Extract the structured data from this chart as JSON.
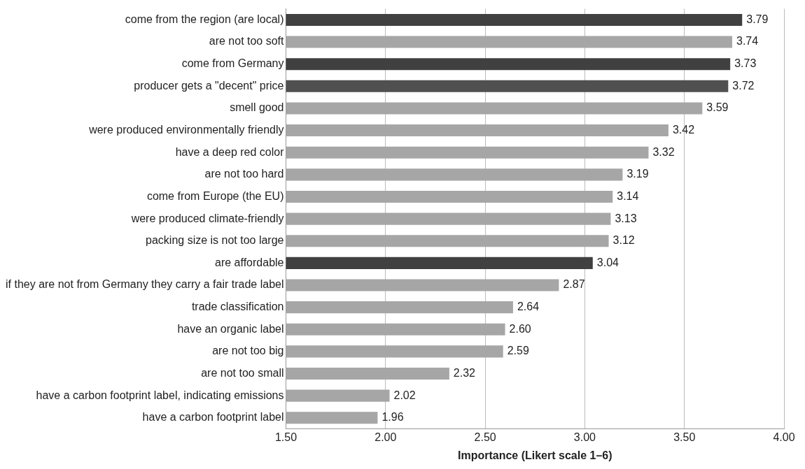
{
  "chart_data": {
    "type": "bar",
    "orientation": "horizontal",
    "xlabel": "Importance (Likert scale 1–6)",
    "categories": [
      "come from the region (are local)",
      "are not too soft",
      "come from Germany",
      "producer gets a \"decent\" price",
      "smell good",
      "were produced environmentally friendly",
      "have a deep red color",
      "are not too hard",
      "come from Europe (the EU)",
      "were produced climate-friendly",
      "packing size is not too large",
      "are affordable",
      "if they are not from Germany they carry a fair trade label",
      "trade classification",
      "have an organic label",
      "are not too big",
      "are not too small",
      "have a carbon footprint label, indicating emissions",
      "have a carbon footprint label"
    ],
    "values": [
      3.79,
      3.74,
      3.73,
      3.72,
      3.59,
      3.42,
      3.32,
      3.19,
      3.14,
      3.13,
      3.12,
      3.04,
      2.87,
      2.64,
      2.6,
      2.59,
      2.32,
      2.02,
      1.96
    ],
    "value_labels": [
      "3.79",
      "3.74",
      "3.73",
      "3.72",
      "3.59",
      "3.42",
      "3.32",
      "3.19",
      "3.14",
      "3.13",
      "3.12",
      "3.04",
      "2.87",
      "2.64",
      "2.60",
      "2.59",
      "2.32",
      "2.02",
      "1.96"
    ],
    "colors": [
      "#404040",
      "#a6a6a6",
      "#404040",
      "#505050",
      "#a6a6a6",
      "#a6a6a6",
      "#a6a6a6",
      "#a6a6a6",
      "#a6a6a6",
      "#a6a6a6",
      "#a6a6a6",
      "#404040",
      "#a6a6a6",
      "#a6a6a6",
      "#a6a6a6",
      "#a6a6a6",
      "#a6a6a6",
      "#a6a6a6",
      "#a6a6a6"
    ],
    "xlim": [
      1.5,
      4.0
    ],
    "xticks": [
      {
        "value": 1.5,
        "label": "1.50"
      },
      {
        "value": 2.0,
        "label": "2.00"
      },
      {
        "value": 2.5,
        "label": "2.50"
      },
      {
        "value": 3.0,
        "label": "3.00"
      },
      {
        "value": 3.5,
        "label": "3.50"
      },
      {
        "value": 4.0,
        "label": "4.00"
      }
    ],
    "grid": "x",
    "legend": false
  }
}
